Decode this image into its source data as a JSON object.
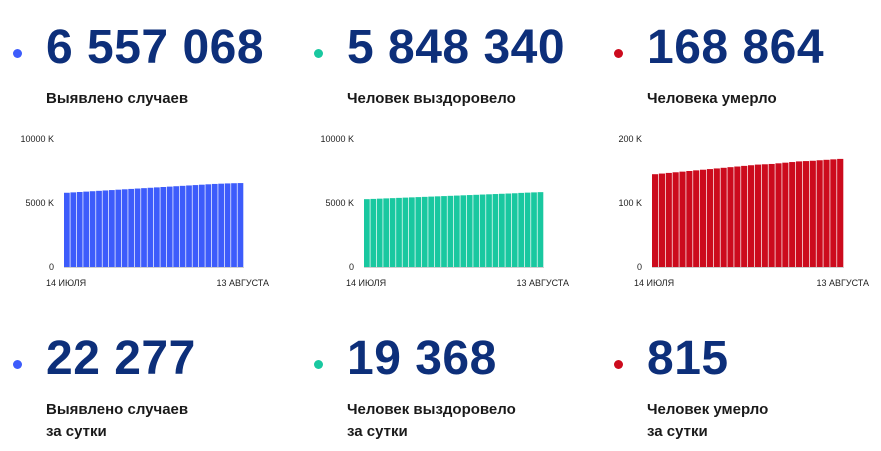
{
  "colors": {
    "cases": "#3d5cfb",
    "recovered": "#19c8a0",
    "deaths": "#cc0b1d",
    "number": "#0d2f7a"
  },
  "totals": [
    {
      "key": "cases",
      "value": "6 557 068",
      "label": "Выявлено случаев"
    },
    {
      "key": "recovered",
      "value": "5 848 340",
      "label": "Человек выздоровело"
    },
    {
      "key": "deaths",
      "value": "168 864",
      "label": "Человека умерло"
    }
  ],
  "daily": [
    {
      "key": "cases",
      "value": "22 277",
      "label_line1": "Выявлено случаев",
      "label_line2": "за сутки"
    },
    {
      "key": "recovered",
      "value": "19 368",
      "label_line1": "Человек выздоровело",
      "label_line2": "за сутки"
    },
    {
      "key": "deaths",
      "value": "815",
      "label_line1": "Человек умерло",
      "label_line2": "за сутки"
    }
  ],
  "chart_data": [
    {
      "type": "bar",
      "series": [
        {
          "values": [
            5800,
            5830,
            5860,
            5890,
            5920,
            5950,
            5980,
            6010,
            6040,
            6070,
            6100,
            6130,
            6160,
            6190,
            6220,
            6250,
            6280,
            6310,
            6340,
            6370,
            6400,
            6430,
            6460,
            6490,
            6510,
            6530,
            6545,
            6557
          ]
        }
      ],
      "x_tick_labels": [
        "14 ИЮЛЯ",
        "13 АВГУСТА"
      ],
      "y_ticks": [
        0,
        5000,
        10000
      ],
      "y_tick_labels": [
        "0",
        "5000 K",
        "10000 K"
      ],
      "ylim": [
        0,
        10000
      ],
      "grid": false,
      "color": "#3d5cfb"
    },
    {
      "type": "bar",
      "series": [
        {
          "values": [
            5300,
            5320,
            5340,
            5360,
            5380,
            5400,
            5420,
            5440,
            5460,
            5480,
            5500,
            5520,
            5540,
            5560,
            5580,
            5600,
            5620,
            5640,
            5660,
            5680,
            5700,
            5720,
            5740,
            5760,
            5790,
            5810,
            5830,
            5848
          ]
        }
      ],
      "x_tick_labels": [
        "14 ИЮЛЯ",
        "13 АВГУСТА"
      ],
      "y_ticks": [
        0,
        5000,
        10000
      ],
      "y_tick_labels": [
        "0",
        "5000 K",
        "10000 K"
      ],
      "ylim": [
        0,
        10000
      ],
      "grid": false,
      "color": "#19c8a0"
    },
    {
      "type": "bar",
      "series": [
        {
          "values": [
            145,
            146,
            147,
            148,
            149,
            150,
            151,
            152,
            153,
            154,
            155,
            156,
            157,
            158,
            159,
            160,
            160.5,
            161,
            162,
            163,
            164,
            165,
            165.5,
            166,
            166.8,
            167.5,
            168.2,
            168.9
          ]
        }
      ],
      "x_tick_labels": [
        "14 ИЮЛЯ",
        "13 АВГУСТА"
      ],
      "y_ticks": [
        0,
        100,
        200
      ],
      "y_tick_labels": [
        "0",
        "100 K",
        "200 K"
      ],
      "ylim": [
        0,
        200
      ],
      "grid": false,
      "color": "#cc0b1d"
    }
  ]
}
